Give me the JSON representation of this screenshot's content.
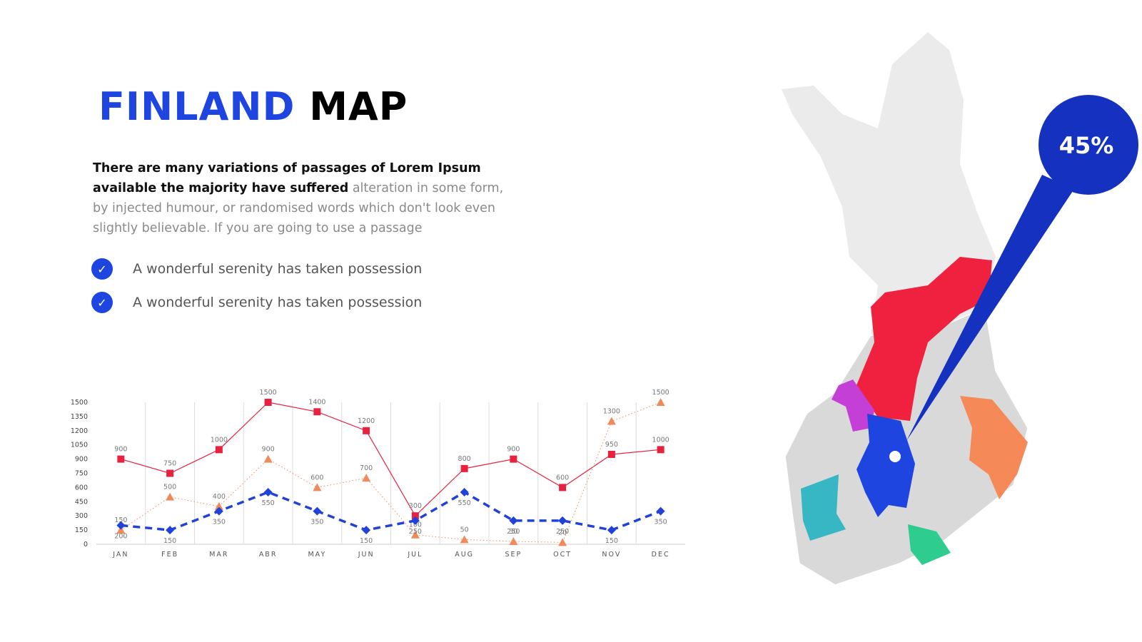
{
  "header": {
    "title_accent": "FINLAND",
    "title_main": "MAP"
  },
  "body": {
    "lead": "There are many variations of passages of Lorem Ipsum available the majority have suffered",
    "text": "alteration in some form, by injected humour, or randomised words which don't look even slightly believable. If you are going to use a passage"
  },
  "bullets": [
    "A wonderful serenity has taken possession",
    "A wonderful serenity has taken possession"
  ],
  "map": {
    "callout": "45%"
  },
  "chart_data": {
    "type": "line",
    "categories": [
      "JAN",
      "FEB",
      "MAR",
      "ABR",
      "MAY",
      "JUN",
      "JUL",
      "AUG",
      "SEP",
      "OCT",
      "NOV",
      "DEC"
    ],
    "series": [
      {
        "color": "#e8213f",
        "dash": "solid",
        "marker": "square",
        "values": [
          900,
          750,
          1000,
          1500,
          1400,
          1200,
          300,
          800,
          900,
          600,
          950,
          1000
        ]
      },
      {
        "color": "#f08a5a",
        "dash": "dotted",
        "marker": "triangle",
        "values": [
          150,
          500,
          400,
          900,
          600,
          700,
          100,
          50,
          30,
          20,
          1300,
          1500
        ]
      },
      {
        "color": "#2142d8",
        "dash": "dashed",
        "marker": "diamond",
        "values": [
          200,
          150,
          350,
          550,
          350,
          150,
          250,
          550,
          250,
          250,
          150,
          350
        ]
      }
    ],
    "ylim": [
      0,
      1500
    ],
    "yticks": [
      0,
      150,
      300,
      450,
      600,
      750,
      900,
      1050,
      1200,
      1350,
      1500
    ],
    "grid": true
  }
}
